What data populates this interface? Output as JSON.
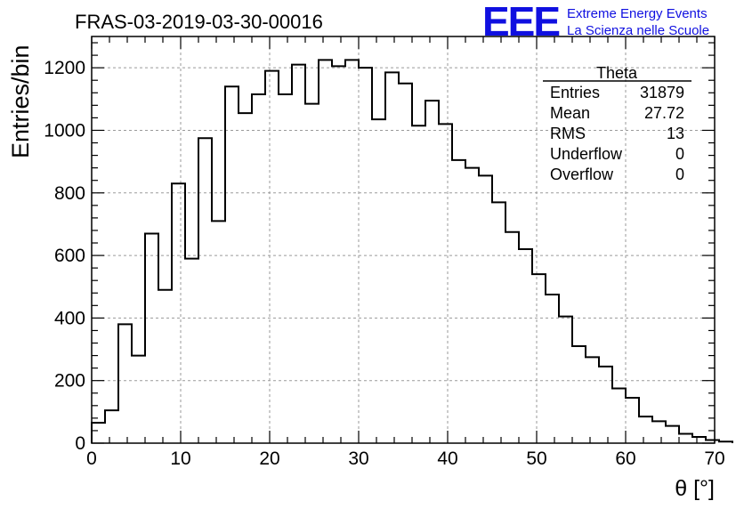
{
  "header": {
    "run_title": "FRAS-03-2019-03-30-00016",
    "logo_mark": "EEE",
    "logo_line1": "Extreme Energy Events",
    "logo_line2": "La Scienza nelle Scuole",
    "logo_color": "#1010e0"
  },
  "stats_box": {
    "title": "Theta",
    "rows": [
      {
        "label": "Entries",
        "value": "31879"
      },
      {
        "label": "Mean",
        "value": "27.72"
      },
      {
        "label": "RMS",
        "value": "13"
      },
      {
        "label": "Underflow",
        "value": "0"
      },
      {
        "label": "Overflow",
        "value": "0"
      }
    ]
  },
  "chart_data": {
    "type": "bar",
    "style": "step-histogram",
    "xlabel": "θ [°]",
    "ylabel": "Entries/bin",
    "xlim": [
      0,
      70
    ],
    "ylim": [
      0,
      1300
    ],
    "bin_width": 1.5,
    "x_ticks": [
      0,
      10,
      20,
      30,
      40,
      50,
      60,
      70
    ],
    "y_ticks": [
      0,
      200,
      400,
      600,
      800,
      1000,
      1200
    ],
    "grid": true,
    "values": [
      65,
      105,
      380,
      280,
      670,
      490,
      830,
      590,
      975,
      710,
      1140,
      1055,
      1115,
      1190,
      1115,
      1210,
      1085,
      1225,
      1205,
      1225,
      1200,
      1035,
      1185,
      1150,
      1015,
      1095,
      1020,
      905,
      880,
      855,
      770,
      675,
      620,
      540,
      475,
      405,
      310,
      275,
      245,
      175,
      145,
      85,
      70,
      55,
      30,
      20,
      10,
      5
    ]
  }
}
